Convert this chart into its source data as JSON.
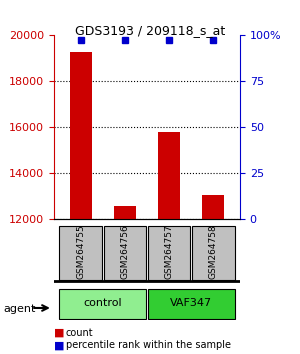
{
  "title": "GDS3193 / 209118_s_at",
  "samples": [
    "GSM264755",
    "GSM264756",
    "GSM264757",
    "GSM264758"
  ],
  "counts": [
    19300,
    12600,
    15800,
    13050
  ],
  "percentile_ranks": [
    99,
    99,
    99,
    99
  ],
  "groups": [
    "control",
    "control",
    "VAF347",
    "VAF347"
  ],
  "group_labels": [
    "control",
    "VAF347"
  ],
  "group_colors": [
    "#90EE90",
    "#32CD32"
  ],
  "ylim_left": [
    12000,
    20000
  ],
  "ylim_right": [
    0,
    100
  ],
  "yticks_left": [
    12000,
    14000,
    16000,
    18000,
    20000
  ],
  "yticks_right": [
    0,
    25,
    50,
    75,
    100
  ],
  "bar_color": "#CC0000",
  "pct_color": "#0000CC",
  "sample_box_color": "#C0C0C0",
  "bg_color": "#FFFFFF",
  "legend_count_color": "#CC0000",
  "legend_pct_color": "#0000CC"
}
